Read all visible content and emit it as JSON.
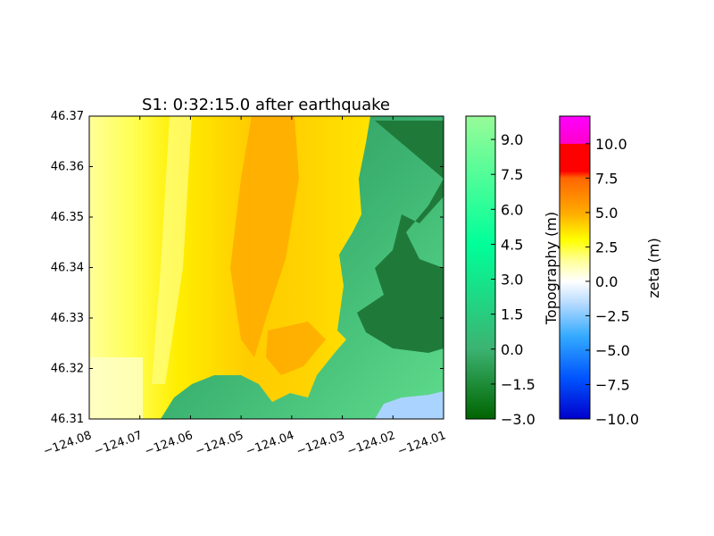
{
  "chart_data": {
    "type": "heatmap",
    "title": "S1: 0:32:15.0 after earthquake",
    "xlabel": "",
    "ylabel": "",
    "xlim": [
      -124.08,
      -124.01
    ],
    "ylim": [
      46.31,
      46.37
    ],
    "x_ticks": [
      {
        "value": -124.08,
        "label": "−124.08"
      },
      {
        "value": -124.07,
        "label": "−124.07"
      },
      {
        "value": -124.06,
        "label": "−124.06"
      },
      {
        "value": -124.05,
        "label": "−124.05"
      },
      {
        "value": -124.04,
        "label": "−124.04"
      },
      {
        "value": -124.03,
        "label": "−124.03"
      },
      {
        "value": -124.02,
        "label": "−124.02"
      },
      {
        "value": -124.01,
        "label": "−124.01"
      }
    ],
    "y_ticks": [
      {
        "value": 46.31,
        "label": "46.31"
      },
      {
        "value": 46.32,
        "label": "46.32"
      },
      {
        "value": 46.33,
        "label": "46.33"
      },
      {
        "value": 46.34,
        "label": "46.34"
      },
      {
        "value": 46.35,
        "label": "46.35"
      },
      {
        "value": 46.36,
        "label": "46.36"
      },
      {
        "value": 46.37,
        "label": "46.37"
      }
    ],
    "grid": false,
    "colorbars": [
      {
        "label": "Topography (m)",
        "range": [
          -3.0,
          10.0
        ],
        "ticks": [
          {
            "value": -3.0,
            "label": "−3.0"
          },
          {
            "value": -1.5,
            "label": "−1.5"
          },
          {
            "value": 0.0,
            "label": "0.0"
          },
          {
            "value": 1.5,
            "label": "1.5"
          },
          {
            "value": 3.0,
            "label": "3.0"
          },
          {
            "value": 4.5,
            "label": "4.5"
          },
          {
            "value": 6.0,
            "label": "6.0"
          },
          {
            "value": 7.5,
            "label": "7.5"
          },
          {
            "value": 9.0,
            "label": "9.0"
          }
        ],
        "colors": [
          {
            "value": -3.0,
            "color": "#006400"
          },
          {
            "value": 0.0,
            "color": "#3cb371"
          },
          {
            "value": 4.5,
            "color": "#00ff99"
          },
          {
            "value": 10.0,
            "color": "#98fb98"
          }
        ]
      },
      {
        "label": "zeta (m)",
        "range": [
          -10.0,
          12.0
        ],
        "ticks": [
          {
            "value": -10.0,
            "label": "−10.0"
          },
          {
            "value": -7.5,
            "label": "−7.5"
          },
          {
            "value": -5.0,
            "label": "−5.0"
          },
          {
            "value": -2.5,
            "label": "−2.5"
          },
          {
            "value": 0.0,
            "label": "0.0"
          },
          {
            "value": 2.5,
            "label": "2.5"
          },
          {
            "value": 5.0,
            "label": "5.0"
          },
          {
            "value": 7.5,
            "label": "7.5"
          },
          {
            "value": 10.0,
            "label": "10.0"
          }
        ],
        "colors": [
          {
            "value": -10.0,
            "color": "#0000cc"
          },
          {
            "value": -7.0,
            "color": "#0055ff"
          },
          {
            "value": -4.0,
            "color": "#33aaff"
          },
          {
            "value": -1.5,
            "color": "#bbddff"
          },
          {
            "value": 0.0,
            "color": "#ffffff"
          },
          {
            "value": 1.5,
            "color": "#ffff99"
          },
          {
            "value": 3.0,
            "color": "#ffff00"
          },
          {
            "value": 5.0,
            "color": "#ffaa00"
          },
          {
            "value": 7.5,
            "color": "#ff6600"
          },
          {
            "value": 8.0,
            "color": "#ff0000"
          },
          {
            "value": 10.0,
            "color": "#ff0000"
          },
          {
            "value": 10.0,
            "color": "#ff00cc"
          },
          {
            "value": 12.0,
            "color": "#ff00ff"
          }
        ]
      }
    ]
  }
}
